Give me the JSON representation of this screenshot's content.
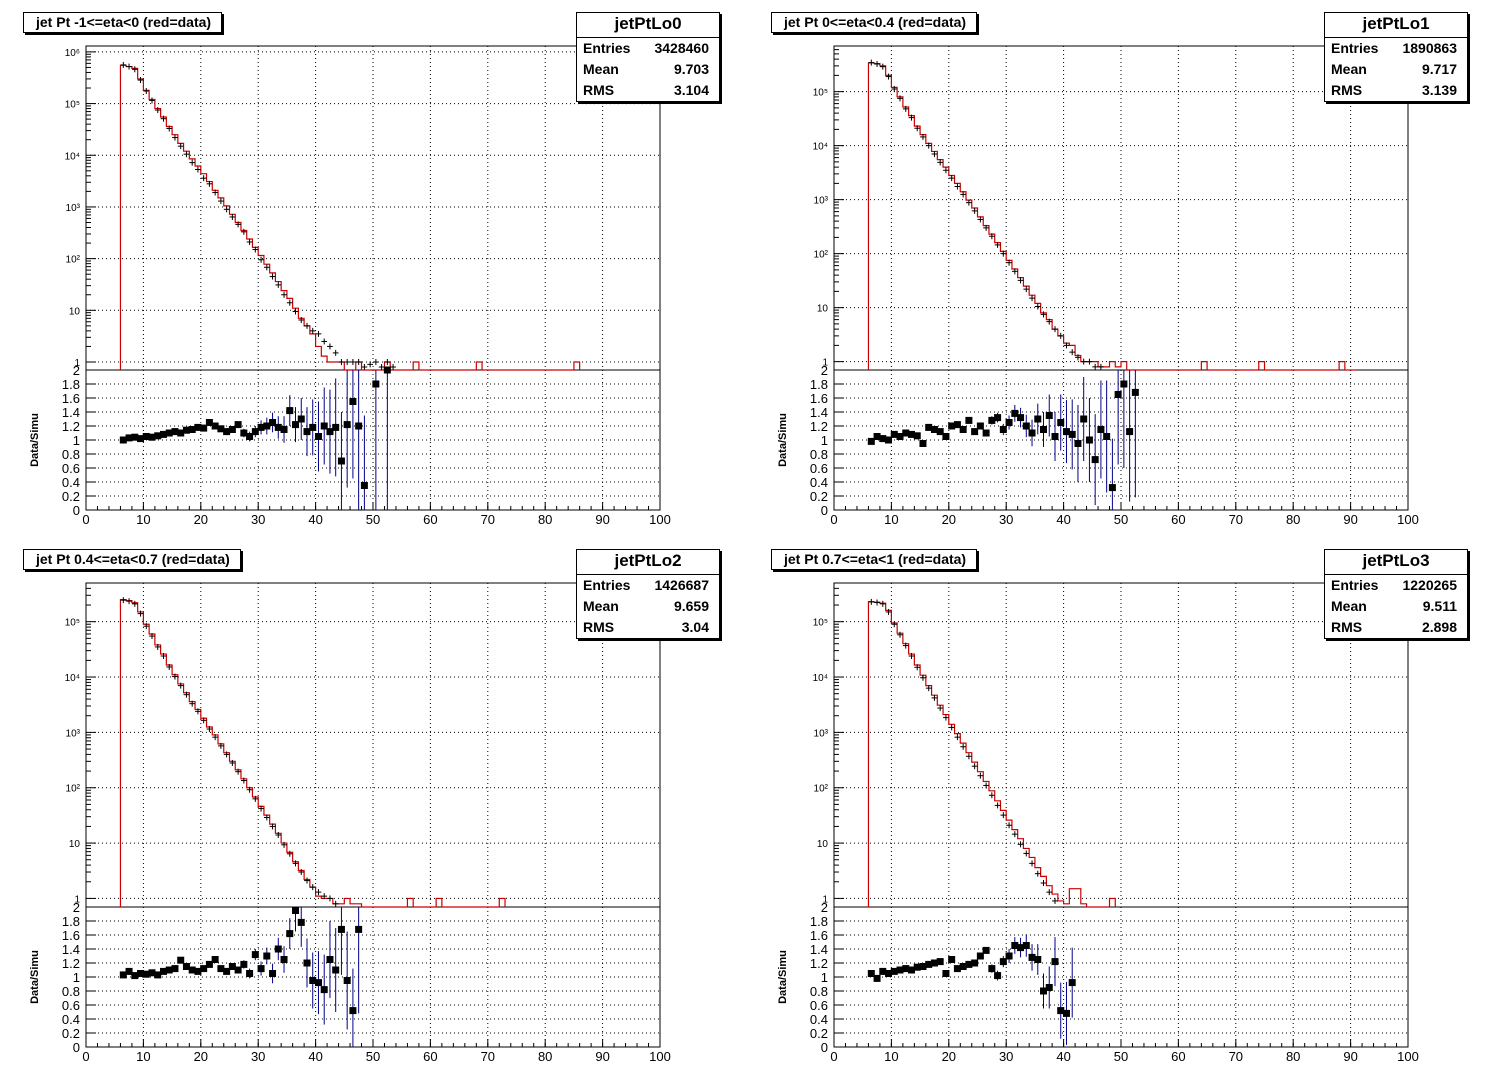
{
  "chart_data": [
    {
      "type": "line",
      "name": "jetPtLo0",
      "title": "jet Pt -1<=eta<0 (red=data)",
      "stats": {
        "entries_label": "Entries",
        "entries": "3428460",
        "mean_label": "Mean",
        "mean": "9.703",
        "rms_label": "RMS",
        "rms": "3.104"
      },
      "xlim": [
        0,
        100
      ],
      "x_ticks": [
        "0",
        "10",
        "20",
        "30",
        "40",
        "50",
        "60",
        "70",
        "80",
        "90",
        "100"
      ],
      "log_ylim": [
        0.7,
        1300000
      ],
      "log_y_ticks": [
        "1",
        "10",
        "10²",
        "10³",
        "10⁴",
        "10⁵",
        "10⁶"
      ],
      "grid": true,
      "ratio_ylabel": "Data/Simu",
      "ratio_ylim": [
        0,
        2
      ],
      "ratio_y_ticks": [
        "0",
        "0.2",
        "0.4",
        "0.6",
        "0.8",
        "1",
        "1.2",
        "1.4",
        "1.6",
        "1.8",
        "2"
      ],
      "data_x": [
        6,
        7,
        8,
        9,
        10,
        11,
        12,
        13,
        14,
        15,
        16,
        17,
        18,
        19,
        20,
        21,
        22,
        23,
        24,
        25,
        26,
        27,
        28,
        29,
        30,
        31,
        32,
        33,
        34,
        35,
        36,
        37,
        38,
        39,
        40,
        41,
        42,
        43,
        44,
        45,
        46,
        47,
        48,
        49,
        50,
        51,
        52,
        53,
        54,
        55,
        56,
        57,
        58,
        59,
        60,
        61,
        62,
        63,
        64,
        65,
        66,
        67,
        68,
        69,
        70,
        71,
        72,
        73,
        74,
        75,
        76,
        77,
        78,
        79,
        80,
        81,
        82,
        83,
        84,
        85
      ],
      "data_y": [
        550000,
        520000,
        480000,
        300000,
        180000,
        120000,
        80000,
        55000,
        36000,
        25000,
        17000,
        12000,
        8500,
        6200,
        4400,
        3100,
        2100,
        1500,
        1050,
        720,
        500,
        350,
        240,
        165,
        115,
        78,
        53,
        36,
        24,
        17,
        11,
        7,
        5,
        3.5,
        2,
        1.3,
        1,
        1,
        1,
        0.7,
        0,
        1,
        0,
        0,
        0,
        0,
        1,
        0,
        0,
        0,
        0,
        1,
        0,
        0,
        0,
        0,
        0,
        0,
        0,
        0,
        0,
        0,
        1,
        0,
        0,
        0,
        0,
        0,
        0,
        0,
        0,
        0,
        0,
        0,
        0,
        0,
        0,
        0,
        0,
        1
      ],
      "simu_y": [
        560000,
        520000,
        460000,
        285000,
        175000,
        115000,
        75000,
        51000,
        33000,
        22000,
        15000,
        10500,
        7200,
        5300,
        3600,
        2800,
        1900,
        1300,
        900,
        640,
        460,
        330,
        210,
        150,
        95,
        68,
        45,
        31,
        20,
        14,
        9.5,
        6.5,
        5,
        4,
        3.5,
        2.5,
        2,
        1.5,
        1,
        1,
        1,
        1,
        0.8,
        0.9,
        1,
        0.8,
        1,
        0.8,
        0.6,
        0.5,
        0.5
      ],
      "ratio": [
        1.0,
        1.03,
        1.04,
        1.02,
        1.05,
        1.04,
        1.06,
        1.08,
        1.1,
        1.12,
        1.1,
        1.14,
        1.15,
        1.18,
        1.17,
        1.25,
        1.2,
        1.16,
        1.12,
        1.15,
        1.22,
        1.1,
        1.05,
        1.12,
        1.18,
        1.2,
        1.25,
        1.18,
        1.15,
        1.42,
        1.22,
        1.3,
        1.12,
        1.18,
        1.05,
        1.2,
        1.12,
        1.18,
        0.7,
        1.22,
        1.55,
        1.2,
        0.35,
        null,
        1.8,
        null,
        2.0
      ],
      "ratio_err": [
        0.01,
        0.01,
        0.01,
        0.01,
        0.01,
        0.01,
        0.01,
        0.01,
        0.01,
        0.02,
        0.02,
        0.02,
        0.02,
        0.02,
        0.03,
        0.03,
        0.03,
        0.04,
        0.04,
        0.05,
        0.05,
        0.06,
        0.07,
        0.08,
        0.1,
        0.12,
        0.14,
        0.16,
        0.19,
        0.22,
        0.25,
        0.3,
        0.35,
        0.4,
        0.5,
        0.55,
        0.6,
        0.7,
        0.7,
        0.9,
        1.1,
        1.2,
        1.0,
        null,
        1.8,
        null,
        2.0
      ]
    },
    {
      "type": "line",
      "name": "jetPtLo1",
      "title": "jet Pt 0<=eta<0.4 (red=data)",
      "stats": {
        "entries_label": "Entries",
        "entries": "1890863",
        "mean_label": "Mean",
        "mean": "9.717",
        "rms_label": "RMS",
        "rms": "3.139"
      },
      "xlim": [
        0,
        100
      ],
      "x_ticks": [
        "0",
        "10",
        "20",
        "30",
        "40",
        "50",
        "60",
        "70",
        "80",
        "90",
        "100"
      ],
      "log_ylim": [
        0.7,
        700000
      ],
      "log_y_ticks": [
        "1",
        "10",
        "10²",
        "10³",
        "10⁴",
        "10⁵"
      ],
      "grid": true,
      "ratio_ylabel": "Data/Simu",
      "ratio_ylim": [
        0,
        2
      ],
      "ratio_y_ticks": [
        "0",
        "0.2",
        "0.4",
        "0.6",
        "0.8",
        "1",
        "1.2",
        "1.4",
        "1.6",
        "1.8",
        "2"
      ],
      "data_x": [
        6,
        7,
        8,
        9,
        10,
        11,
        12,
        13,
        14,
        15,
        16,
        17,
        18,
        19,
        20,
        21,
        22,
        23,
        24,
        25,
        26,
        27,
        28,
        29,
        30,
        31,
        32,
        33,
        34,
        35,
        36,
        37,
        38,
        39,
        40,
        41,
        42,
        43,
        44,
        45,
        46,
        47,
        48,
        49,
        50,
        51,
        52,
        53,
        54,
        55,
        56,
        57,
        58,
        59,
        60,
        61,
        62,
        63,
        64,
        65,
        66,
        67,
        68,
        69,
        70,
        71,
        72,
        73,
        74,
        75,
        76,
        77,
        78,
        79,
        80,
        81,
        82,
        83,
        84,
        85,
        86,
        87,
        88,
        89,
        90
      ],
      "data_y": [
        340000,
        330000,
        300000,
        200000,
        120000,
        80000,
        52000,
        36000,
        23000,
        16000,
        11000,
        7800,
        5500,
        4000,
        2800,
        2000,
        1400,
        980,
        700,
        480,
        330,
        230,
        160,
        110,
        75,
        52,
        36,
        25,
        17,
        12,
        8,
        6,
        4,
        3,
        2.2,
        2,
        1.3,
        1,
        1,
        1,
        0.8,
        0.8,
        1,
        0.8,
        1,
        0,
        0,
        0,
        0,
        0,
        0,
        0,
        0,
        0,
        0,
        0,
        0,
        0,
        1,
        0,
        0,
        0,
        0,
        0,
        0,
        0,
        0,
        0,
        1,
        0,
        0,
        0,
        0,
        0,
        0,
        0,
        0,
        0,
        0,
        0,
        0,
        0,
        1,
        0,
        0
      ],
      "simu_y": [
        345000,
        325000,
        290000,
        190000,
        112000,
        75000,
        48000,
        33000,
        21000,
        14500,
        10000,
        7000,
        4900,
        3500,
        2500,
        1750,
        1250,
        880,
        620,
        430,
        300,
        210,
        145,
        100,
        68,
        47,
        32,
        22,
        15,
        10.5,
        7.5,
        5.5,
        4,
        3,
        2,
        1.5,
        1.2,
        1,
        1,
        0.8,
        0.8,
        0.7,
        0.6,
        0.5,
        0.5
      ],
      "ratio": [
        0.98,
        1.05,
        1.02,
        1.0,
        1.08,
        1.05,
        1.1,
        1.08,
        1.06,
        0.95,
        1.18,
        1.15,
        1.12,
        1.05,
        1.2,
        1.22,
        1.15,
        1.28,
        1.12,
        1.2,
        1.1,
        1.28,
        1.32,
        1.15,
        1.25,
        1.38,
        1.32,
        1.2,
        1.1,
        1.3,
        1.15,
        1.35,
        1.05,
        1.25,
        1.12,
        1.08,
        0.95,
        1.3,
        1.0,
        0.72,
        1.15,
        1.05,
        0.32,
        1.65,
        1.8,
        1.12,
        1.68
      ],
      "ratio_err": [
        0.01,
        0.01,
        0.01,
        0.01,
        0.01,
        0.01,
        0.01,
        0.01,
        0.01,
        0.02,
        0.02,
        0.02,
        0.02,
        0.02,
        0.03,
        0.03,
        0.03,
        0.04,
        0.04,
        0.05,
        0.05,
        0.06,
        0.07,
        0.08,
        0.1,
        0.12,
        0.14,
        0.16,
        0.19,
        0.22,
        0.25,
        0.3,
        0.35,
        0.4,
        0.45,
        0.5,
        0.55,
        0.6,
        0.6,
        0.65,
        0.7,
        0.8,
        0.7,
        1.0,
        1.2,
        1.0,
        1.5
      ]
    },
    {
      "type": "line",
      "name": "jetPtLo2",
      "title": "jet Pt 0.4<=eta<0.7 (red=data)",
      "stats": {
        "entries_label": "Entries",
        "entries": "1426687",
        "mean_label": "Mean",
        "mean": "9.659",
        "rms_label": "RMS",
        "rms": "3.04"
      },
      "xlim": [
        0,
        100
      ],
      "x_ticks": [
        "0",
        "10",
        "20",
        "30",
        "40",
        "50",
        "60",
        "70",
        "80",
        "90",
        "100"
      ],
      "log_ylim": [
        0.7,
        500000
      ],
      "log_y_ticks": [
        "1",
        "10",
        "10²",
        "10³",
        "10⁴",
        "10⁵"
      ],
      "grid": true,
      "ratio_ylabel": "Data/Simu",
      "ratio_ylim": [
        0,
        2
      ],
      "ratio_y_ticks": [
        "0",
        "0.2",
        "0.4",
        "0.6",
        "0.8",
        "1",
        "1.2",
        "1.4",
        "1.6",
        "1.8",
        "2"
      ],
      "data_x": [
        6,
        7,
        8,
        9,
        10,
        11,
        12,
        13,
        14,
        15,
        16,
        17,
        18,
        19,
        20,
        21,
        22,
        23,
        24,
        25,
        26,
        27,
        28,
        29,
        30,
        31,
        32,
        33,
        34,
        35,
        36,
        37,
        38,
        39,
        40,
        41,
        42,
        43,
        44,
        45,
        46,
        47,
        48,
        49,
        50,
        51,
        52,
        53,
        54,
        55,
        56,
        57,
        58,
        59,
        60,
        61,
        62,
        63,
        64,
        65,
        66,
        67,
        68,
        69,
        70,
        71,
        72
      ],
      "data_y": [
        250000,
        240000,
        220000,
        150000,
        90000,
        60000,
        38000,
        26000,
        16500,
        11000,
        7500,
        5200,
        3600,
        2600,
        1800,
        1250,
        900,
        620,
        430,
        300,
        210,
        145,
        100,
        68,
        46,
        32,
        22,
        15,
        10,
        6.8,
        4.6,
        3.2,
        2.2,
        1.6,
        1.1,
        1,
        1,
        0.8,
        0.8,
        1,
        0.8,
        0.8,
        0,
        0,
        0,
        0,
        0,
        0,
        0,
        0,
        1,
        0,
        0,
        0,
        0,
        1,
        0,
        0,
        0,
        0,
        0,
        0,
        0,
        0,
        0,
        0,
        1
      ],
      "simu_y": [
        245000,
        235000,
        210000,
        140000,
        83000,
        55000,
        35000,
        24000,
        15200,
        10200,
        7000,
        4800,
        3300,
        2400,
        1650,
        1150,
        820,
        570,
        400,
        280,
        195,
        135,
        92,
        63,
        42,
        29,
        20,
        14,
        9.3,
        6.4,
        4.3,
        3,
        2.1,
        1.6,
        1.3,
        1.1,
        1,
        0.8,
        0.7,
        0.6
      ],
      "ratio": [
        1.03,
        1.08,
        1.02,
        1.05,
        1.04,
        1.06,
        1.03,
        1.08,
        1.1,
        1.12,
        1.24,
        1.15,
        1.1,
        1.08,
        1.12,
        1.18,
        1.25,
        1.12,
        1.08,
        1.15,
        1.1,
        1.18,
        1.05,
        1.32,
        1.12,
        1.3,
        1.05,
        1.4,
        1.25,
        1.62,
        1.95,
        1.78,
        1.2,
        0.95,
        0.92,
        0.82,
        1.25,
        1.1,
        1.68,
        0.95,
        0.52,
        1.68
      ],
      "ratio_err": [
        0.01,
        0.01,
        0.01,
        0.01,
        0.01,
        0.01,
        0.01,
        0.01,
        0.01,
        0.02,
        0.02,
        0.02,
        0.02,
        0.02,
        0.03,
        0.03,
        0.03,
        0.04,
        0.04,
        0.05,
        0.05,
        0.06,
        0.07,
        0.08,
        0.1,
        0.12,
        0.14,
        0.16,
        0.19,
        0.22,
        0.3,
        0.35,
        0.35,
        0.4,
        0.45,
        0.5,
        0.55,
        0.6,
        0.65,
        0.7,
        0.6,
        1.2
      ]
    },
    {
      "type": "line",
      "name": "jetPtLo3",
      "title": "jet Pt 0.7<=eta<1 (red=data)",
      "stats": {
        "entries_label": "Entries",
        "entries": "1220265",
        "mean_label": "Mean",
        "mean": "9.511",
        "rms_label": "RMS",
        "rms": "2.898"
      },
      "xlim": [
        0,
        100
      ],
      "x_ticks": [
        "0",
        "10",
        "20",
        "30",
        "40",
        "50",
        "60",
        "70",
        "80",
        "90",
        "100"
      ],
      "log_ylim": [
        0.7,
        500000
      ],
      "log_y_ticks": [
        "1",
        "10",
        "10²",
        "10³",
        "10⁴",
        "10⁵"
      ],
      "grid": true,
      "ratio_ylabel": "Data/Simu",
      "ratio_ylim": [
        0,
        2
      ],
      "ratio_y_ticks": [
        "0",
        "0.2",
        "0.4",
        "0.6",
        "0.8",
        "1",
        "1.2",
        "1.4",
        "1.6",
        "1.8",
        "2"
      ],
      "data_x": [
        6,
        7,
        8,
        9,
        10,
        11,
        12,
        13,
        14,
        15,
        16,
        17,
        18,
        19,
        20,
        21,
        22,
        23,
        24,
        25,
        26,
        27,
        28,
        29,
        30,
        31,
        32,
        33,
        34,
        35,
        36,
        37,
        38,
        39,
        40,
        41,
        42,
        43,
        44,
        45,
        46,
        47,
        48
      ],
      "data_y": [
        230000,
        225000,
        215000,
        160000,
        95000,
        62000,
        40000,
        26000,
        16500,
        10800,
        7000,
        4700,
        3100,
        2100,
        1400,
        950,
        640,
        430,
        290,
        195,
        130,
        88,
        58,
        39,
        26,
        17.5,
        12,
        8,
        5.5,
        3.6,
        2.5,
        1.7,
        1.2,
        0.9,
        0.8,
        1.5,
        1.5,
        0.8,
        0,
        0,
        0,
        0,
        1
      ],
      "simu_y": [
        228000,
        222000,
        210000,
        150000,
        90000,
        58000,
        37000,
        24000,
        15000,
        9700,
        6300,
        4200,
        2750,
        1850,
        1230,
        820,
        550,
        370,
        245,
        165,
        110,
        73,
        48,
        32,
        21,
        14.5,
        9.5,
        6.5,
        4.3,
        2.8,
        1.9,
        1.3,
        0.9,
        0.7,
        0.6
      ],
      "ratio": [
        1.05,
        0.98,
        1.08,
        1.05,
        1.08,
        1.1,
        1.12,
        1.1,
        1.14,
        1.15,
        1.18,
        1.2,
        1.22,
        1.05,
        1.25,
        1.12,
        1.15,
        1.18,
        1.2,
        1.3,
        1.38,
        1.12,
        1.02,
        1.22,
        1.3,
        1.45,
        1.42,
        1.45,
        1.28,
        1.25,
        0.8,
        0.85,
        1.22,
        0.52,
        0.48,
        0.92
      ],
      "ratio_err": [
        0.01,
        0.01,
        0.01,
        0.01,
        0.01,
        0.01,
        0.01,
        0.01,
        0.01,
        0.02,
        0.02,
        0.02,
        0.02,
        0.02,
        0.03,
        0.03,
        0.03,
        0.04,
        0.04,
        0.05,
        0.05,
        0.06,
        0.07,
        0.08,
        0.1,
        0.12,
        0.14,
        0.16,
        0.19,
        0.22,
        0.25,
        0.3,
        0.35,
        0.4,
        0.45,
        0.5
      ]
    }
  ]
}
